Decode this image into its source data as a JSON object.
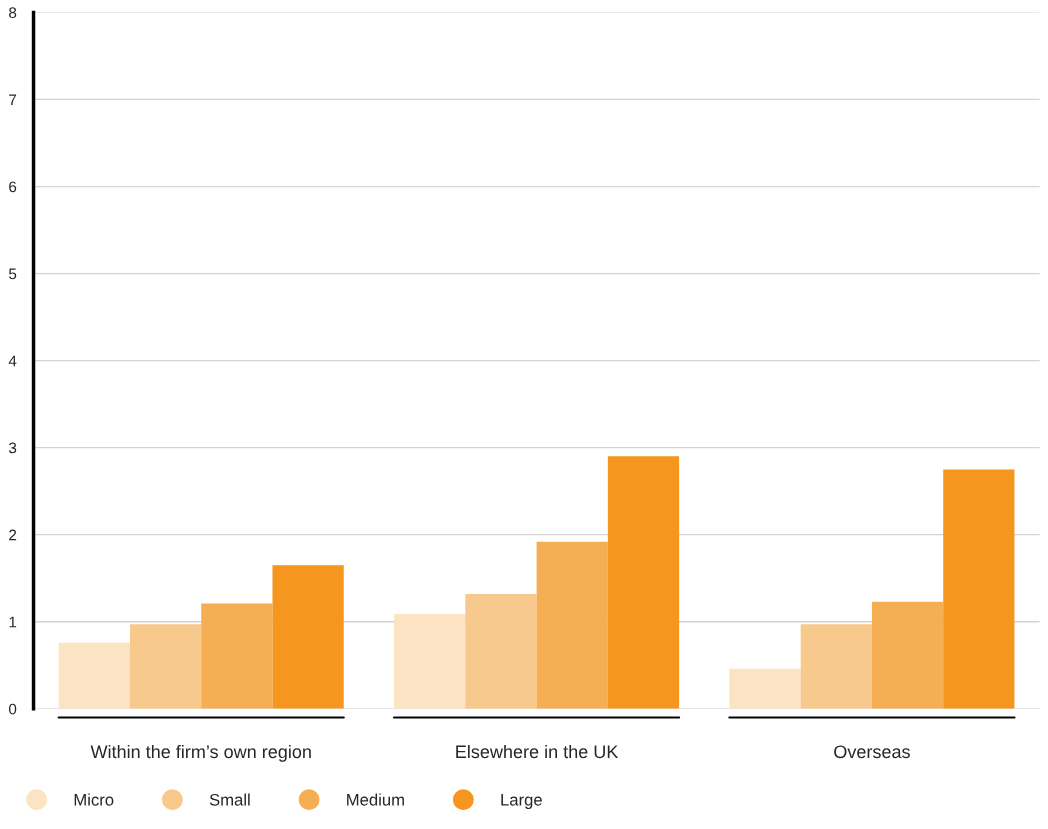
{
  "chart_data": {
    "type": "bar",
    "categories": [
      "Within the firm’s own region",
      "Elsewhere in the UK",
      "Overseas"
    ],
    "series": [
      {
        "name": "Micro",
        "color": "#fbe3c4",
        "values": [
          0.76,
          1.09,
          0.46
        ]
      },
      {
        "name": "Small",
        "color": "#f8c98c",
        "values": [
          0.97,
          1.32,
          0.97
        ]
      },
      {
        "name": "Medium",
        "color": "#f6ae54",
        "values": [
          1.21,
          1.92,
          1.23
        ]
      },
      {
        "name": "Large",
        "color": "#f5961f",
        "values": [
          1.65,
          2.9,
          2.75
        ]
      }
    ],
    "ylim": [
      0,
      8
    ],
    "yticks": [
      0,
      1,
      2,
      3,
      4,
      5,
      6,
      7,
      8
    ],
    "grid": "y",
    "legend": "bottom left"
  }
}
